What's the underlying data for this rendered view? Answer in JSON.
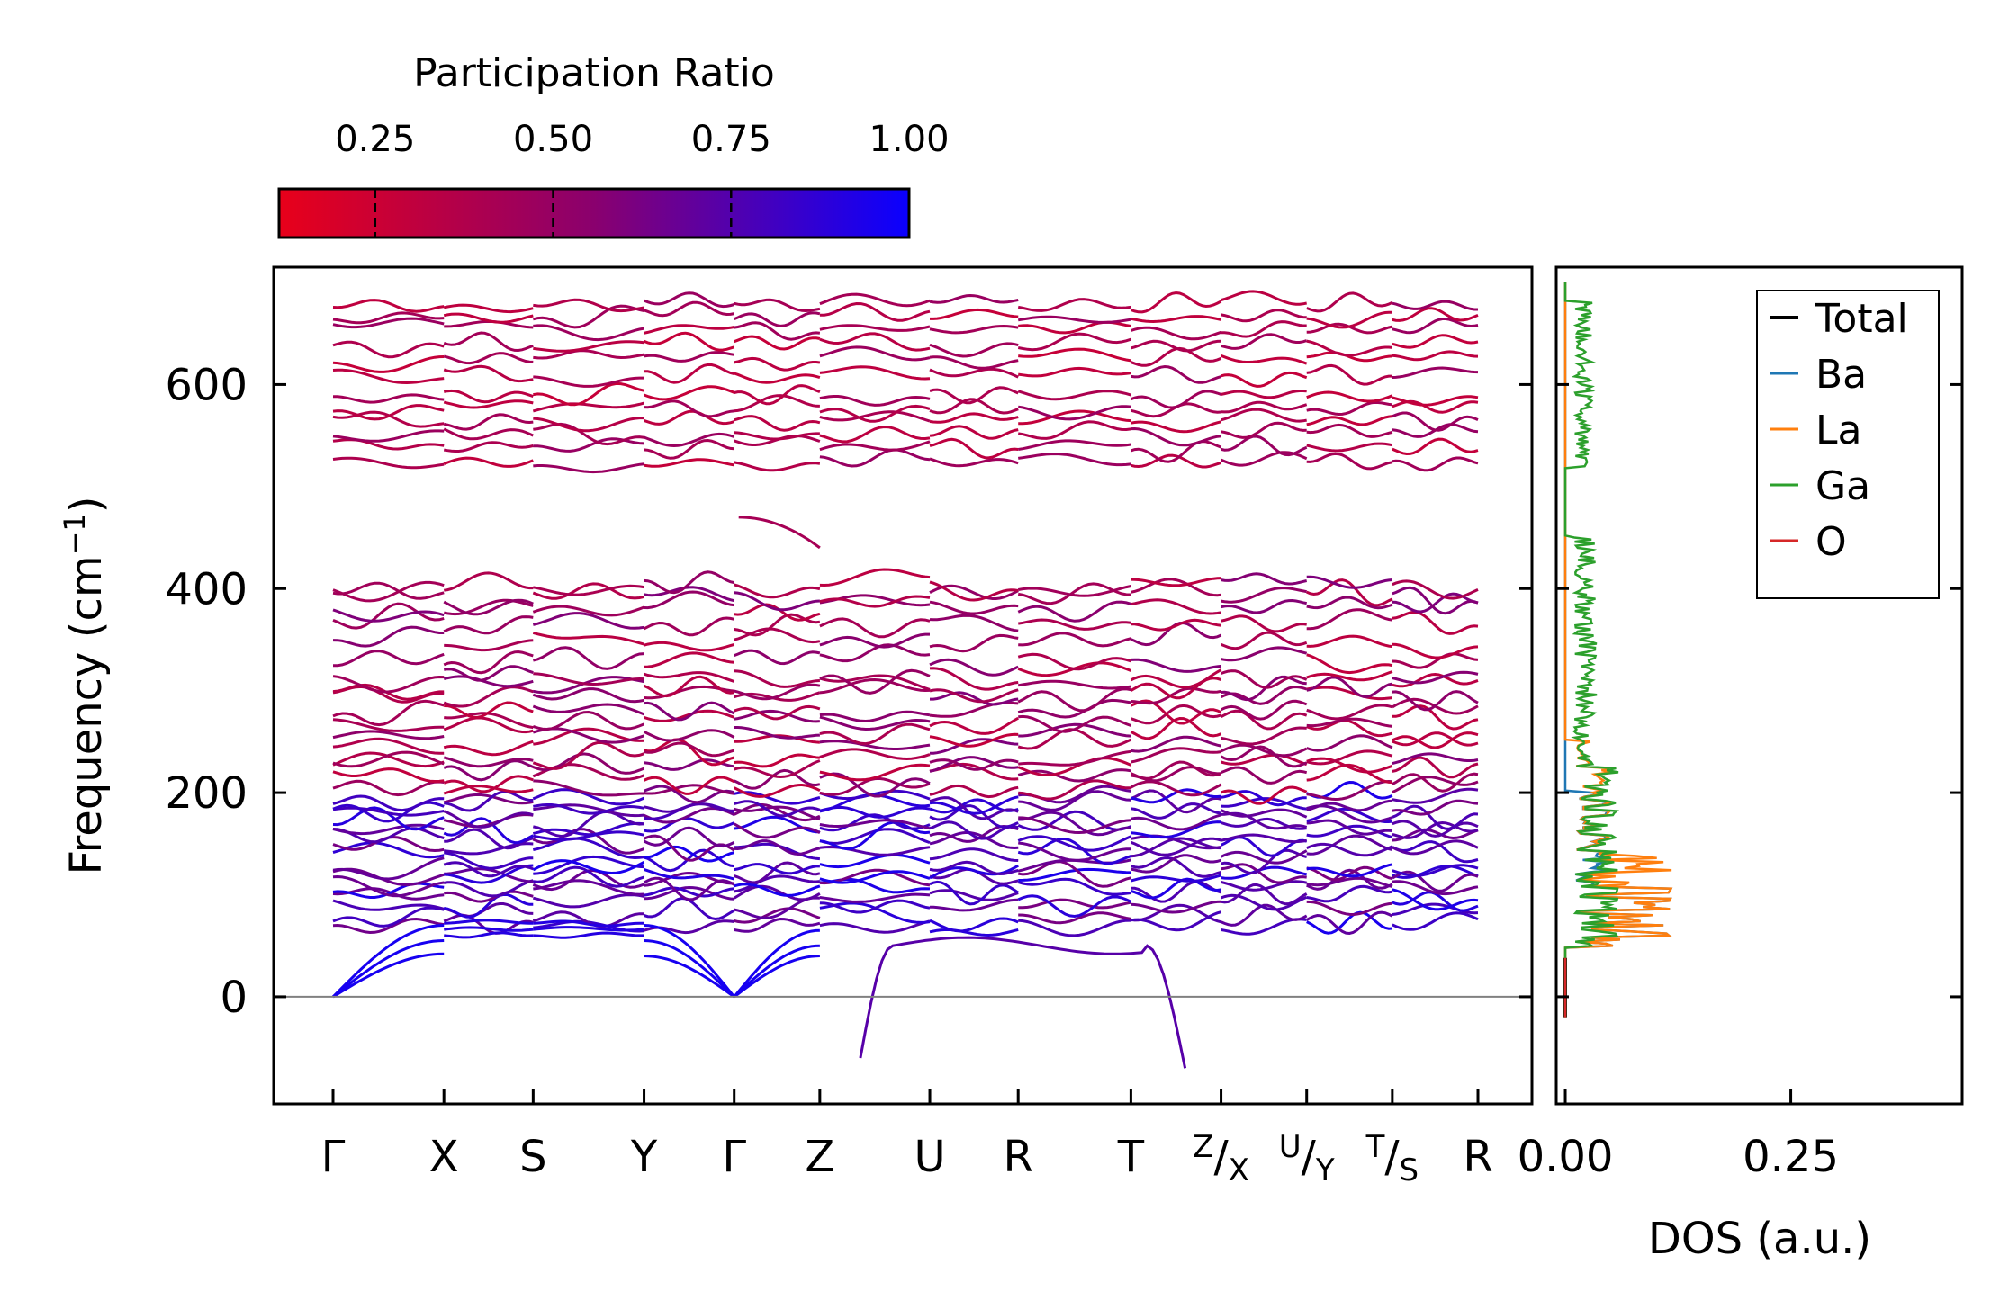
{
  "chart_data": [
    {
      "type": "line",
      "name": "phonon-band-structure",
      "ylabel": "Frequency (cm",
      "ylabel_sup": "−1",
      "ylabel_end": ")",
      "ylim": [
        -105,
        715
      ],
      "yticks": [
        0,
        200,
        400,
        600
      ],
      "ytick_labels": [
        "0",
        "200",
        "400",
        "600"
      ],
      "segments": [
        {
          "x0": 0,
          "x1": 4,
          "points": [
            "Γ",
            "X",
            "S",
            "Y",
            "Γ"
          ]
        },
        {
          "x0": 4,
          "x1": 5,
          "points": [
            "Γ",
            "Z"
          ]
        },
        {
          "x0": 5,
          "x1": 9,
          "points": [
            "Z",
            "U",
            "R",
            "T",
            "Z"
          ]
        },
        {
          "x0": 9,
          "x1": 10,
          "points": [
            "X",
            "U"
          ]
        },
        {
          "x0": 10,
          "x1": 11,
          "points": [
            "Y",
            "T"
          ]
        },
        {
          "x0": 11,
          "x1": 12,
          "points": [
            "S",
            "R"
          ]
        }
      ],
      "xticks": [
        {
          "label": "Γ"
        },
        {
          "label": "X"
        },
        {
          "label": "S"
        },
        {
          "label": "Y"
        },
        {
          "label": "Γ"
        },
        {
          "label": "Z"
        },
        {
          "label": "U"
        },
        {
          "label": "R"
        },
        {
          "label": "T"
        },
        {
          "label_sup": "Z",
          "label_mid": "/",
          "label_sub": "X"
        },
        {
          "label_sup": "U",
          "label_mid": "/",
          "label_sub": "Y"
        },
        {
          "label_sup": "T",
          "label_mid": "/",
          "label_sub": "S"
        },
        {
          "label": "R"
        }
      ],
      "optical_branches_low": [
        70,
        80,
        92,
        100,
        108,
        115,
        122,
        130,
        140,
        150,
        158,
        165,
        172,
        180,
        188,
        196,
        205,
        215,
        225,
        235,
        245,
        258,
        270,
        282,
        295,
        305,
        315,
        330,
        350,
        365,
        380,
        392,
        405
      ],
      "optical_branches_high": [
        525,
        540,
        552,
        565,
        578,
        590,
        610,
        625,
        640,
        655,
        668,
        678
      ],
      "imaginary_branch": {
        "start_value": -60,
        "plateau": 50,
        "end_value": -70
      },
      "upper_special": [
        470,
        440
      ],
      "colormap": {
        "low": "#e8001a",
        "mid": "#8a006e",
        "high": "#0a00ff"
      }
    },
    {
      "type": "line",
      "name": "density-of-states",
      "xlabel": "DOS (a.u.)",
      "xticks": [
        0.0,
        0.25
      ],
      "xtick_labels": [
        "0.00",
        "0.25"
      ],
      "xlim": [
        -0.01,
        0.44
      ],
      "ylim": [
        -105,
        715
      ],
      "series": [
        {
          "name": "Total",
          "color": "#000000"
        },
        {
          "name": "Ba",
          "color": "#1f77b4"
        },
        {
          "name": "La",
          "color": "#ff7f0e"
        },
        {
          "name": "Ga",
          "color": "#2ca02c"
        },
        {
          "name": "O",
          "color": "#d62728"
        }
      ]
    }
  ],
  "colorbar": {
    "title": "Participation Ratio",
    "ticks": [
      0.25,
      0.5,
      0.75,
      1.0
    ],
    "tick_labels": [
      "0.25",
      "0.50",
      "0.75",
      "1.00"
    ],
    "range": [
      0.115,
      1.0
    ],
    "colors": [
      "#e8001a",
      "#8a006e",
      "#0a00ff"
    ]
  }
}
